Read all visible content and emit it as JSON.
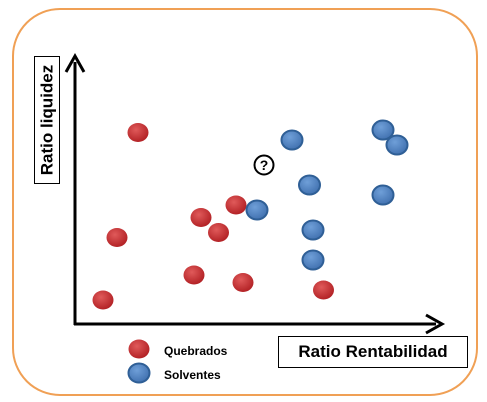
{
  "chart_data": {
    "type": "scatter",
    "xlabel": "Ratio Rentabilidad",
    "ylabel": "Ratio liquidez",
    "xlim": [
      0,
      10
    ],
    "ylim": [
      0,
      10
    ],
    "grid": false,
    "legend_placement": "bottom-left",
    "series": [
      {
        "name": "Quebrados",
        "color": "#c0282a",
        "points": [
          {
            "x": 1.8,
            "y": 7.7
          },
          {
            "x": 1.2,
            "y": 3.5
          },
          {
            "x": 0.8,
            "y": 1.0
          },
          {
            "x": 3.6,
            "y": 4.3
          },
          {
            "x": 4.1,
            "y": 3.7
          },
          {
            "x": 4.6,
            "y": 4.8
          },
          {
            "x": 3.4,
            "y": 2.0
          },
          {
            "x": 4.8,
            "y": 1.7
          },
          {
            "x": 7.1,
            "y": 1.4
          }
        ]
      },
      {
        "name": "Solventes",
        "color": "#4f81bd",
        "points": [
          {
            "x": 6.2,
            "y": 7.4
          },
          {
            "x": 8.8,
            "y": 7.8
          },
          {
            "x": 9.2,
            "y": 7.2
          },
          {
            "x": 6.7,
            "y": 5.6
          },
          {
            "x": 8.8,
            "y": 5.2
          },
          {
            "x": 5.2,
            "y": 4.6
          },
          {
            "x": 6.8,
            "y": 3.8
          },
          {
            "x": 6.8,
            "y": 2.6
          }
        ]
      }
    ],
    "annotations": [
      {
        "text": "?",
        "x": 5.4,
        "y": 6.4,
        "shape": "circled"
      }
    ]
  }
}
